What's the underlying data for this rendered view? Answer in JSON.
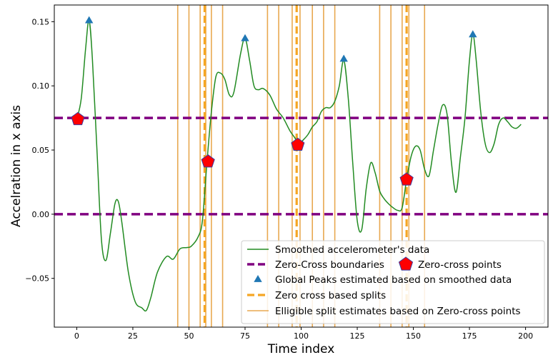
{
  "chart_data": {
    "type": "line",
    "xlabel": "Time index",
    "ylabel": "Accelration in x axis",
    "xlim": [
      -10,
      210
    ],
    "ylim": [
      -0.088,
      0.163
    ],
    "x_ticks": [
      0,
      25,
      50,
      75,
      100,
      125,
      150,
      175,
      200
    ],
    "y_ticks": [
      -0.05,
      0.0,
      0.05,
      0.1,
      0.15
    ],
    "y_tick_labels": [
      "−0.05",
      "0.00",
      "0.05",
      "0.10",
      "0.15"
    ],
    "grid": false,
    "legend_position": "lower-right",
    "series": [
      {
        "name": "Smoothed accelerometer's data",
        "kind": "line",
        "color": "#228b22",
        "x": [
          0,
          2,
          4,
          5.5,
          7,
          9,
          11,
          13,
          15,
          17,
          18.5,
          20,
          23,
          26,
          29,
          31,
          33,
          36,
          40,
          43,
          46,
          49,
          51,
          54,
          56,
          58,
          60,
          62,
          64,
          66,
          68,
          70,
          73,
          75,
          77,
          79,
          81,
          83,
          86,
          89,
          92,
          95,
          97,
          99,
          101,
          103,
          105,
          107,
          109,
          111,
          113,
          115,
          117,
          119,
          121,
          123,
          125,
          127,
          129,
          131,
          133,
          135,
          137,
          139,
          141,
          143,
          145,
          147,
          149,
          151,
          153,
          155,
          157,
          159,
          161,
          163,
          165,
          167,
          169,
          171,
          173,
          175,
          176.5,
          178,
          180,
          182,
          184,
          186,
          188,
          190,
          192,
          194,
          196,
          198
        ],
        "y": [
          0.074,
          0.09,
          0.13,
          0.151,
          0.12,
          0.05,
          -0.02,
          -0.036,
          -0.015,
          0.008,
          0.01,
          -0.005,
          -0.045,
          -0.068,
          -0.073,
          -0.075,
          -0.065,
          -0.045,
          -0.033,
          -0.035,
          -0.027,
          -0.026,
          -0.025,
          -0.018,
          -0.005,
          0.04,
          0.08,
          0.107,
          0.11,
          0.105,
          0.093,
          0.095,
          0.125,
          0.137,
          0.12,
          0.1,
          0.097,
          0.098,
          0.093,
          0.082,
          0.075,
          0.065,
          0.06,
          0.055,
          0.058,
          0.062,
          0.068,
          0.072,
          0.08,
          0.083,
          0.083,
          0.088,
          0.1,
          0.12,
          0.09,
          0.04,
          -0.005,
          -0.012,
          0.02,
          0.04,
          0.032,
          0.018,
          0.012,
          0.008,
          0.005,
          0.003,
          0.005,
          0.027,
          0.045,
          0.053,
          0.05,
          0.035,
          0.03,
          0.05,
          0.07,
          0.085,
          0.078,
          0.04,
          0.017,
          0.045,
          0.075,
          0.12,
          0.14,
          0.12,
          0.08,
          0.055,
          0.048,
          0.055,
          0.07,
          0.075,
          0.072,
          0.068,
          0.067,
          0.07
        ]
      },
      {
        "name": "Zero-Cross boundaries",
        "kind": "hline",
        "color": "#800080",
        "y_values": [
          0.075,
          0.0
        ]
      },
      {
        "name": "Zero-cross points",
        "kind": "marker",
        "marker": "pentagon",
        "color": "#ff0000",
        "x": [
          0.5,
          58.5,
          98.5,
          147
        ],
        "y": [
          0.074,
          0.041,
          0.054,
          0.027
        ]
      },
      {
        "name": "Global Peaks estimated based on smoothed data",
        "kind": "marker",
        "marker": "triangle",
        "color": "#1f77b4",
        "x": [
          5.5,
          75,
          119,
          176.5
        ],
        "y": [
          0.151,
          0.137,
          0.121,
          0.14
        ]
      },
      {
        "name": "Zero cross based splits",
        "kind": "vline",
        "style": "dashed",
        "color": "#f5a623",
        "x_values": [
          57,
          98,
          147
        ]
      },
      {
        "name": "Elligible split estimates based on Zero-cross points",
        "kind": "vline",
        "style": "solid",
        "color": "#e8a850",
        "x_values": [
          45,
          50,
          55,
          57.5,
          60,
          65,
          85,
          90,
          96,
          99.5,
          105,
          110,
          115,
          135,
          140,
          145,
          148,
          155
        ]
      }
    ]
  }
}
